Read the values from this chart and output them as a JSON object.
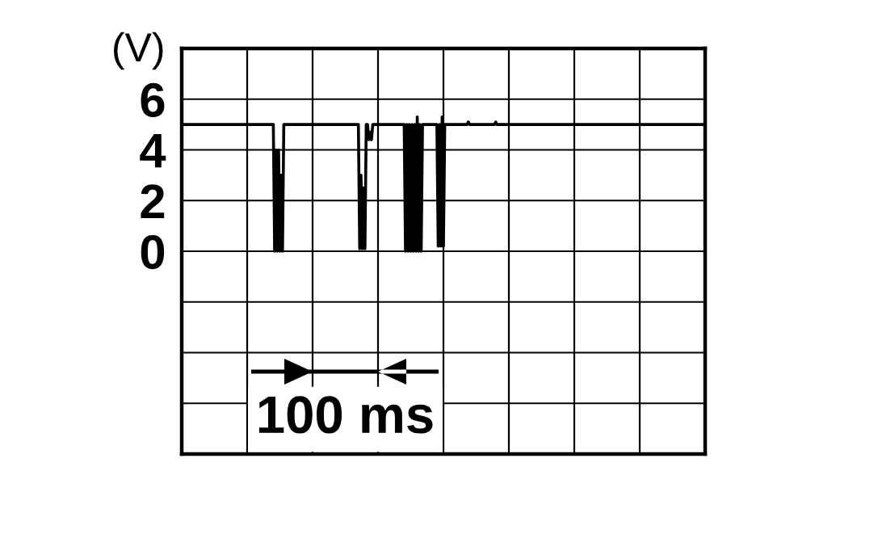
{
  "chart_data": {
    "type": "line",
    "ylabel": "(V)",
    "categories": [
      null,
      null,
      null,
      null,
      null,
      null,
      null,
      null,
      null,
      null,
      null,
      null,
      null,
      null,
      null,
      null,
      null,
      null,
      null,
      null,
      null,
      null,
      null,
      null,
      null,
      null,
      null,
      null,
      null,
      null,
      null,
      null,
      null,
      null,
      null,
      null,
      null,
      null,
      null,
      null,
      null,
      null,
      null,
      null,
      null,
      null,
      null,
      null,
      null,
      null,
      null,
      null,
      null,
      null,
      null,
      null,
      null,
      null,
      null,
      null,
      null,
      null,
      null,
      null,
      null,
      null,
      null,
      null,
      null,
      null,
      null,
      null,
      null,
      null,
      null,
      null,
      null,
      null,
      null,
      null,
      null,
      null,
      null,
      null,
      null,
      null,
      null,
      null,
      null,
      null,
      null,
      null,
      null,
      null,
      null,
      null,
      null,
      null,
      null,
      null,
      null,
      null,
      null,
      null,
      null,
      null,
      null,
      null,
      null,
      null,
      null,
      null,
      null,
      null,
      null,
      null,
      null,
      null,
      null,
      null,
      null,
      null,
      null,
      null,
      null,
      null,
      null,
      null,
      null,
      null,
      null,
      null,
      null,
      null,
      null,
      null,
      null,
      null,
      null,
      null,
      null,
      null,
      null,
      null,
      null,
      null,
      null,
      null,
      null,
      null,
      null,
      null,
      null,
      null,
      null,
      null,
      null,
      null,
      null,
      null,
      null,
      null,
      null,
      null,
      null,
      null,
      null,
      null,
      null,
      null,
      null,
      null,
      null,
      null,
      null,
      null,
      null,
      null,
      null,
      null,
      null,
      null,
      null,
      null,
      null,
      null,
      null,
      null,
      null,
      null,
      null,
      null,
      null,
      null,
      null,
      null,
      null,
      null,
      null,
      null,
      null,
      null,
      null,
      null,
      null,
      null,
      null,
      null,
      null,
      null,
      null,
      null,
      null,
      null,
      null,
      null,
      null,
      null,
      null,
      null,
      null,
      null,
      null,
      null,
      null,
      null,
      null,
      null,
      null,
      null,
      null,
      null,
      null,
      null,
      null,
      null,
      null,
      null,
      null,
      null,
      null,
      null,
      null,
      null,
      null,
      null,
      null,
      null,
      null,
      null,
      null,
      null,
      null,
      null,
      null,
      null,
      null,
      null,
      null,
      null,
      null,
      null,
      null,
      null,
      null,
      null,
      null,
      null,
      null,
      null,
      null,
      null,
      null,
      null,
      null,
      null,
      null,
      null,
      null,
      null,
      null,
      null,
      null,
      null,
      null,
      null,
      null,
      null,
      null,
      null,
      null,
      null,
      null,
      null,
      null,
      null,
      null,
      null,
      null,
      null,
      null,
      null,
      null,
      null,
      null,
      null,
      null,
      null,
      null,
      null,
      null,
      null,
      null,
      null,
      null,
      null,
      null,
      null,
      null,
      null,
      null,
      null,
      null,
      null,
      null,
      null,
      null,
      null,
      null,
      null,
      null,
      null,
      null,
      null,
      null,
      null,
      null,
      null,
      null,
      null,
      null,
      null,
      null,
      null,
      null,
      null,
      null,
      null,
      null,
      null,
      null,
      null,
      null,
      null,
      null,
      null,
      null,
      null,
      null,
      null,
      null,
      null,
      null,
      null,
      null,
      null,
      null,
      null,
      null,
      null,
      null,
      null,
      null,
      null,
      null,
      null,
      null,
      null,
      null,
      null,
      null,
      null,
      null,
      null,
      null,
      null,
      null,
      null,
      null,
      null,
      null,
      null,
      null,
      null,
      null,
      null,
      null,
      null,
      null,
      null,
      null
    ],
    "ylim": [
      -8,
      8
    ],
    "yticks": [
      {
        "value": -6,
        "label": null
      },
      {
        "value": -4,
        "label": null
      },
      {
        "value": -2,
        "label": null
      },
      0,
      2,
      4,
      6
    ],
    "tick_labels": "y",
    "grid": true,
    "annotations": [
      "100 ms"
    ],
    "series": [
      {
        "color": "#000000",
        "values": [
          5,
          5,
          5,
          5,
          5,
          5,
          5,
          5,
          5,
          5,
          5,
          5,
          5,
          5,
          5,
          5,
          5,
          5,
          5,
          5,
          5,
          5,
          5,
          5,
          5,
          5,
          5,
          5,
          5,
          5,
          5,
          5,
          5,
          5,
          5,
          5,
          5,
          5,
          5,
          5,
          5,
          5,
          5,
          5,
          5,
          5,
          5,
          5,
          5,
          5,
          5,
          5,
          5,
          5,
          5,
          5,
          5,
          5,
          5,
          5,
          5,
          5,
          5,
          5,
          5,
          5,
          5,
          5,
          5,
          5,
          5,
          0,
          4,
          0,
          4,
          0,
          3,
          0,
          5,
          5,
          5,
          5,
          5,
          5,
          5,
          5,
          5,
          5,
          5,
          5,
          5,
          5,
          5,
          5,
          5,
          5,
          5,
          5,
          5,
          5,
          5,
          5,
          5,
          5,
          5,
          5,
          5,
          5,
          5,
          5,
          5,
          5,
          5,
          5,
          5,
          5,
          5,
          5,
          5,
          5,
          5,
          5,
          5,
          5,
          5,
          5,
          5,
          5,
          5,
          5,
          5,
          5,
          5,
          5,
          5,
          5,
          0.1,
          3,
          0.1,
          2.5,
          0.1,
          5,
          5,
          4.4,
          4.7,
          4.4,
          5,
          5,
          5,
          5,
          5,
          5,
          5,
          5,
          5,
          5,
          5,
          5,
          5,
          5,
          5,
          5,
          5,
          5,
          5,
          5,
          5,
          5,
          5,
          5,
          5,
          0,
          5,
          0,
          5,
          0,
          5,
          0,
          5,
          0,
          5.3,
          0,
          5,
          0,
          5,
          5,
          5,
          5,
          5,
          5,
          5,
          5,
          5,
          5,
          5,
          5,
          0.2,
          5,
          0.2,
          5.3,
          0.2,
          5,
          5,
          5,
          5,
          5,
          5,
          5,
          5,
          5,
          5,
          5,
          5,
          5,
          5,
          5,
          5,
          5,
          5,
          5.1,
          5,
          5,
          5,
          5,
          5,
          5,
          5,
          5,
          5,
          5,
          5,
          5,
          5,
          5,
          5,
          5,
          5,
          5,
          5,
          5,
          5.1,
          5,
          5,
          5,
          5,
          5,
          5,
          5,
          5,
          5,
          5,
          5,
          5,
          5,
          5,
          5,
          5,
          5,
          5,
          5,
          5,
          5,
          5,
          5,
          5,
          5,
          5,
          5,
          5,
          5,
          5,
          5,
          5,
          5,
          5,
          5,
          5,
          5,
          5,
          5,
          5,
          5,
          5,
          5,
          5,
          5,
          5,
          5,
          5,
          5,
          5,
          5,
          5,
          5,
          5,
          5,
          5,
          5,
          5,
          5,
          5,
          5,
          5,
          5,
          5,
          5,
          5,
          5,
          5,
          5,
          5,
          5,
          5,
          5,
          5,
          5,
          5,
          5,
          5,
          5,
          5,
          5,
          5,
          5,
          5,
          5,
          5,
          5,
          5,
          5,
          5,
          5,
          5,
          5,
          5,
          5,
          5,
          5,
          5,
          5,
          5,
          5,
          5,
          5,
          5,
          5,
          5,
          5,
          5,
          5,
          5,
          5,
          5,
          5,
          5,
          5,
          5,
          5,
          5,
          5,
          5,
          5,
          5,
          5,
          5,
          5,
          5,
          5,
          5,
          5,
          5,
          5,
          5,
          5,
          5,
          5,
          5,
          5,
          5,
          5,
          5,
          5,
          5,
          5,
          5,
          5,
          5,
          5,
          5,
          5,
          5,
          5,
          5,
          5,
          5,
          5,
          5,
          5,
          5,
          5,
          5
        ]
      }
    ]
  }
}
